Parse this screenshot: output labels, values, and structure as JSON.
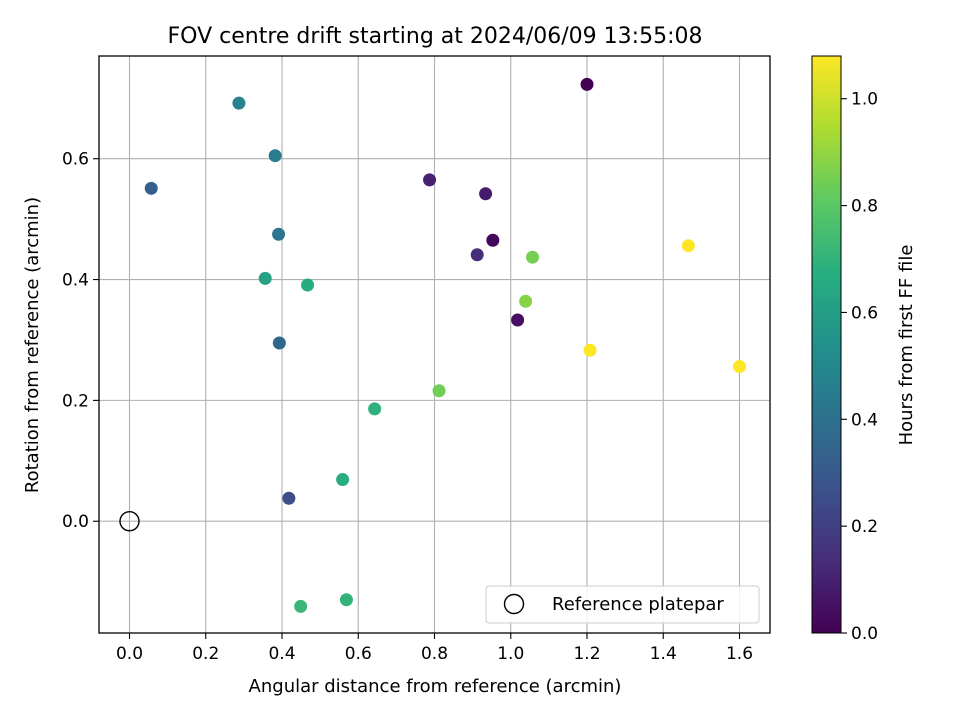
{
  "chart_data": {
    "type": "scatter",
    "title": "FOV centre drift starting at 2024/06/09 13:55:08",
    "xlabel": "Angular distance from reference (arcmin)",
    "ylabel": "Rotation from reference (arcmin)",
    "xlim": [
      -0.08,
      1.68
    ],
    "ylim": [
      -0.185,
      0.77
    ],
    "xticks": [
      0.0,
      0.2,
      0.4,
      0.6,
      0.8,
      1.0,
      1.2,
      1.4,
      1.6
    ],
    "xtick_labels": [
      "0.0",
      "0.2",
      "0.4",
      "0.6",
      "0.8",
      "1.0",
      "1.2",
      "1.4",
      "1.6"
    ],
    "yticks": [
      0.0,
      0.2,
      0.4,
      0.6
    ],
    "ytick_labels": [
      "0.0",
      "0.2",
      "0.4",
      "0.6"
    ],
    "grid": true,
    "colorbar": {
      "label": "Hours from first FF file",
      "range": [
        0.0,
        1.08
      ],
      "ticks": [
        0.0,
        0.2,
        0.4,
        0.6,
        0.8,
        1.0
      ],
      "tick_labels": [
        "0.0",
        "0.2",
        "0.4",
        "0.6",
        "0.8",
        "1.0"
      ],
      "colormap": "viridis"
    },
    "points": [
      {
        "x": 1.2,
        "y": 0.723,
        "c": 0.0
      },
      {
        "x": 0.953,
        "y": 0.465,
        "c": 0.02
      },
      {
        "x": 1.018,
        "y": 0.333,
        "c": 0.04
      },
      {
        "x": 0.934,
        "y": 0.542,
        "c": 0.08
      },
      {
        "x": 0.787,
        "y": 0.565,
        "c": 0.1
      },
      {
        "x": 0.912,
        "y": 0.441,
        "c": 0.14
      },
      {
        "x": 0.418,
        "y": 0.038,
        "c": 0.26
      },
      {
        "x": 0.057,
        "y": 0.551,
        "c": 0.33
      },
      {
        "x": 0.393,
        "y": 0.295,
        "c": 0.36
      },
      {
        "x": 0.391,
        "y": 0.475,
        "c": 0.42
      },
      {
        "x": 0.382,
        "y": 0.605,
        "c": 0.45
      },
      {
        "x": 0.287,
        "y": 0.692,
        "c": 0.48
      },
      {
        "x": 0.356,
        "y": 0.402,
        "c": 0.62
      },
      {
        "x": 0.467,
        "y": 0.391,
        "c": 0.66
      },
      {
        "x": 0.559,
        "y": 0.069,
        "c": 0.67
      },
      {
        "x": 0.643,
        "y": 0.186,
        "c": 0.69
      },
      {
        "x": 0.569,
        "y": -0.13,
        "c": 0.7
      },
      {
        "x": 0.449,
        "y": -0.141,
        "c": 0.72
      },
      {
        "x": 0.812,
        "y": 0.216,
        "c": 0.84
      },
      {
        "x": 1.057,
        "y": 0.437,
        "c": 0.85
      },
      {
        "x": 1.039,
        "y": 0.364,
        "c": 0.88
      },
      {
        "x": 1.208,
        "y": 0.283,
        "c": 1.08
      },
      {
        "x": 1.466,
        "y": 0.456,
        "c": 1.08
      },
      {
        "x": 1.6,
        "y": 0.256,
        "c": 1.08
      }
    ],
    "reference": {
      "x": 0.0,
      "y": 0.0,
      "label": "Reference platepar"
    },
    "legend": {
      "position": "lower-right",
      "entries": [
        "Reference platepar"
      ]
    }
  }
}
